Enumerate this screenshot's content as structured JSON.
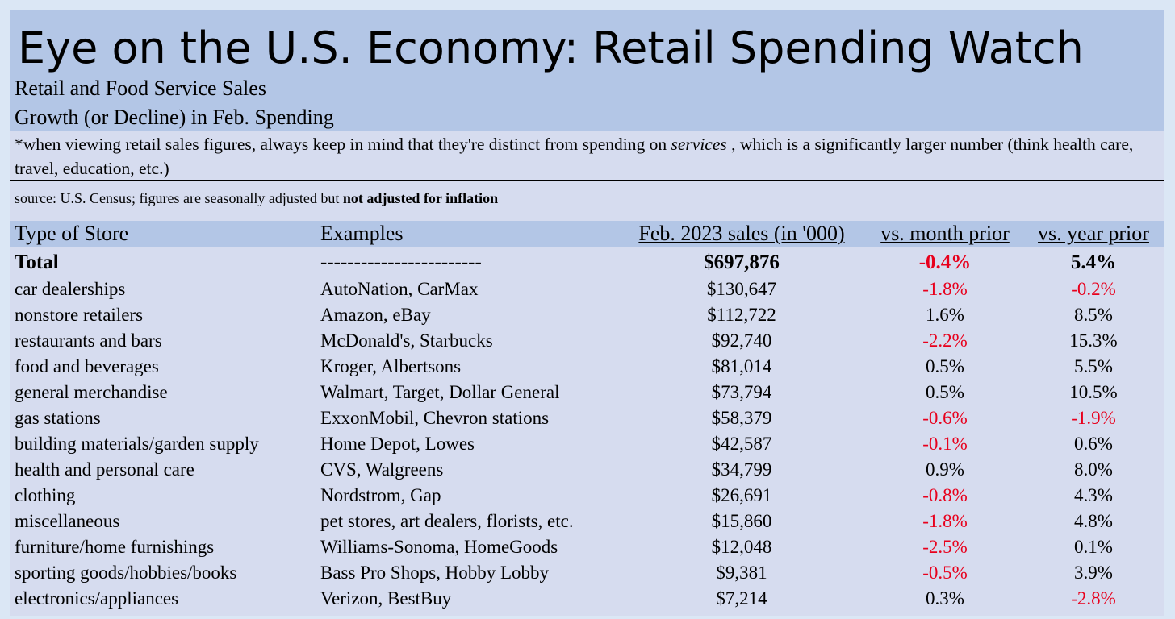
{
  "title": "Eye on the U.S. Economy: Retail Spending Watch",
  "subtitle_line1": "Retail and Food Service Sales",
  "subtitle_line2": "Growth (or Decline) in Feb. Spending",
  "note": {
    "before": "*when viewing retail sales figures, always keep in mind that they're distinct from spending on ",
    "emphasis": "services",
    "after": " , which is a significantly larger number (think health care, travel, education, etc.)"
  },
  "source": {
    "before": "source: U.S. Census; figures are seasonally adjusted but ",
    "bold": "not adjusted for inflation"
  },
  "colors": {
    "negative": "#e8001c",
    "banner": "#b3c6e6",
    "panel": "#d6dcef"
  },
  "chart_data": {
    "type": "table",
    "columns": [
      "Type of Store",
      "Examples",
      "Feb. 2023 sales (in '000)",
      "vs. month prior",
      "vs. year prior"
    ],
    "total": {
      "store": "Total",
      "examples": "------------------------",
      "sales": "$697,876",
      "mom": "-0.4%",
      "yoy": "5.4%"
    },
    "rows": [
      {
        "store": "car dealerships",
        "examples": "AutoNation, CarMax",
        "sales": "$130,647",
        "mom": "-1.8%",
        "yoy": "-0.2%"
      },
      {
        "store": "nonstore retailers",
        "examples": "Amazon, eBay",
        "sales": "$112,722",
        "mom": "1.6%",
        "yoy": "8.5%"
      },
      {
        "store": "restaurants and bars",
        "examples": "McDonald's, Starbucks",
        "sales": "$92,740",
        "mom": "-2.2%",
        "yoy": "15.3%"
      },
      {
        "store": "food and beverages",
        "examples": "Kroger, Albertsons",
        "sales": "$81,014",
        "mom": "0.5%",
        "yoy": "5.5%"
      },
      {
        "store": "general merchandise",
        "examples": "Walmart, Target, Dollar General",
        "sales": "$73,794",
        "mom": "0.5%",
        "yoy": "10.5%"
      },
      {
        "store": "gas stations",
        "examples": "ExxonMobil, Chevron stations",
        "sales": "$58,379",
        "mom": "-0.6%",
        "yoy": "-1.9%"
      },
      {
        "store": "building materials/garden supply",
        "examples": "Home Depot, Lowes",
        "sales": "$42,587",
        "mom": "-0.1%",
        "yoy": "0.6%"
      },
      {
        "store": "health and personal care",
        "examples": "CVS, Walgreens",
        "sales": "$34,799",
        "mom": "0.9%",
        "yoy": "8.0%"
      },
      {
        "store": "clothing",
        "examples": "Nordstrom, Gap",
        "sales": "$26,691",
        "mom": "-0.8%",
        "yoy": "4.3%"
      },
      {
        "store": "miscellaneous",
        "examples": "pet stores, art dealers, florists, etc.",
        "sales": "$15,860",
        "mom": "-1.8%",
        "yoy": "4.8%"
      },
      {
        "store": "furniture/home furnishings",
        "examples": "Williams-Sonoma, HomeGoods",
        "sales": "$12,048",
        "mom": "-2.5%",
        "yoy": "0.1%"
      },
      {
        "store": "sporting goods/hobbies/books",
        "examples": "Bass Pro Shops, Hobby Lobby",
        "sales": "$9,381",
        "mom": "-0.5%",
        "yoy": "3.9%"
      },
      {
        "store": "electronics/appliances",
        "examples": "Verizon, BestBuy",
        "sales": "$7,214",
        "mom": "0.3%",
        "yoy": "-2.8%"
      }
    ]
  }
}
